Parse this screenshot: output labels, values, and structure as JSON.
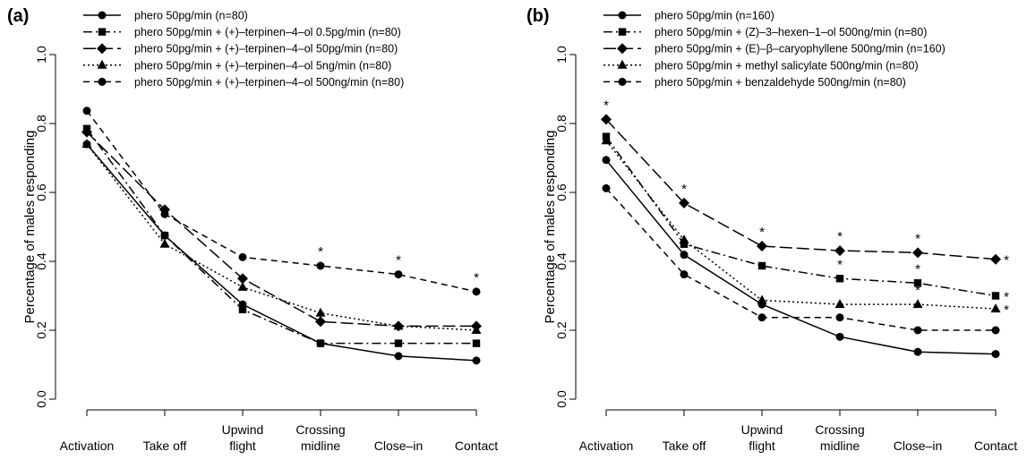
{
  "chart_data": [
    {
      "panel_label": "(a)",
      "type": "line",
      "title": "",
      "xlabel": "",
      "ylabel": "Percentage of males responding",
      "ylim": [
        0.0,
        1.0
      ],
      "yticks": [
        "0.0",
        "0.2",
        "0.4",
        "0.6",
        "0.8",
        "1.0"
      ],
      "categories": [
        [
          "Activation"
        ],
        [
          "Take off"
        ],
        [
          "Upwind",
          "flight"
        ],
        [
          "Crossing",
          "midline"
        ],
        [
          "Close–in"
        ],
        [
          "Contact"
        ]
      ],
      "grid": false,
      "legend_position": "top-left",
      "series": [
        {
          "name": "phero 50pg/min (n=80)",
          "line": "solid",
          "marker": "circle",
          "dash": "",
          "values": [
            0.74,
            0.475,
            0.275,
            0.162,
            0.125,
            0.112
          ],
          "stars": [
            false,
            false,
            false,
            false,
            false,
            false
          ]
        },
        {
          "name": "phero 50pg/min + (+)–terpinen–4–ol 0.5pg/min (n=80)",
          "line": "dashdot",
          "marker": "square",
          "dash": "10 4 2 4",
          "values": [
            0.785,
            0.475,
            0.26,
            0.162,
            0.162,
            0.162
          ],
          "stars": [
            false,
            false,
            false,
            false,
            false,
            false
          ]
        },
        {
          "name": "phero 50pg/min + (+)–terpinen–4–ol 50pg/min (n=80)",
          "line": "longdash",
          "marker": "diamond",
          "dash": "14 5",
          "values": [
            0.775,
            0.55,
            0.35,
            0.225,
            0.212,
            0.212
          ],
          "stars": [
            false,
            false,
            false,
            false,
            false,
            false
          ]
        },
        {
          "name": "phero 50pg/min + (+)–terpinen–4–ol 5ng/min (n=80)",
          "line": "dotted",
          "marker": "triangle",
          "dash": "2 3",
          "values": [
            0.74,
            0.45,
            0.325,
            0.25,
            0.212,
            0.2
          ],
          "stars": [
            false,
            false,
            false,
            false,
            false,
            false
          ]
        },
        {
          "name": "phero 50pg/min + (+)–terpinen–4–ol 500ng/min (n=80)",
          "line": "dashed",
          "marker": "circle",
          "dash": "7 5",
          "values": [
            0.837,
            0.537,
            0.412,
            0.387,
            0.362,
            0.312
          ],
          "stars": [
            false,
            false,
            false,
            true,
            true,
            true
          ]
        }
      ]
    },
    {
      "panel_label": "(b)",
      "type": "line",
      "title": "",
      "xlabel": "",
      "ylabel": "Percentage of males responding",
      "ylim": [
        0.0,
        1.0
      ],
      "yticks": [
        "0.0",
        "0.2",
        "0.4",
        "0.6",
        "0.8",
        "1.0"
      ],
      "categories": [
        [
          "Activation"
        ],
        [
          "Take off"
        ],
        [
          "Upwind",
          "flight"
        ],
        [
          "Crossing",
          "midline"
        ],
        [
          "Close–in"
        ],
        [
          "Contact"
        ]
      ],
      "grid": false,
      "legend_position": "top-left",
      "series": [
        {
          "name": "phero 50pg/min (n=160)",
          "line": "solid",
          "marker": "circle",
          "dash": "",
          "values": [
            0.694,
            0.419,
            0.275,
            0.181,
            0.137,
            0.131
          ],
          "stars": [
            false,
            false,
            false,
            false,
            false,
            false
          ]
        },
        {
          "name": "phero 50pg/min + (Z)–3–hexen–1–ol 500ng/min (n=80)",
          "line": "dashdot",
          "marker": "square",
          "dash": "10 4 2 4",
          "values": [
            0.762,
            0.45,
            0.387,
            0.35,
            0.337,
            0.3
          ],
          "stars": [
            false,
            false,
            false,
            true,
            true,
            true
          ]
        },
        {
          "name": "phero 50pg/min + (E)–β–caryophyllene 500ng/min (n=160)",
          "line": "longdash",
          "marker": "diamond",
          "dash": "14 5",
          "values": [
            0.812,
            0.569,
            0.444,
            0.431,
            0.425,
            0.406
          ],
          "stars": [
            true,
            true,
            true,
            true,
            true,
            true
          ]
        },
        {
          "name": "phero 50pg/min + methyl salicylate 500ng/min (n=80)",
          "line": "dotted",
          "marker": "triangle",
          "dash": "2 3",
          "values": [
            0.75,
            0.462,
            0.287,
            0.275,
            0.275,
            0.262
          ],
          "stars": [
            false,
            false,
            false,
            false,
            true,
            true
          ]
        },
        {
          "name": "phero 50pg/min + benzaldehyde 500ng/min (n=80)",
          "line": "dashed",
          "marker": "circle",
          "dash": "7 5",
          "values": [
            0.612,
            0.362,
            0.237,
            0.237,
            0.2,
            0.2
          ],
          "stars": [
            false,
            false,
            false,
            false,
            false,
            false
          ]
        }
      ]
    }
  ]
}
